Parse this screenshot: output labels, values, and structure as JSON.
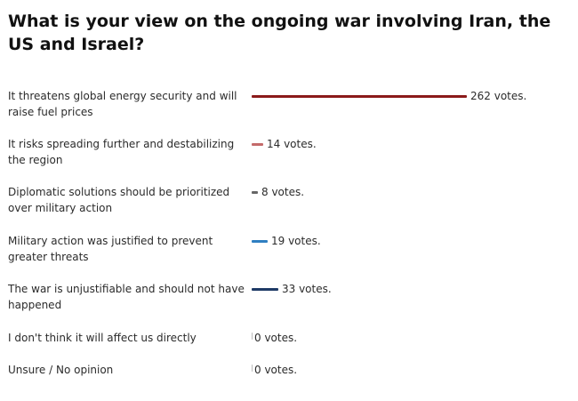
{
  "poll": {
    "question": "What is your view on the ongoing war involving Iran, the US and Israel?",
    "options": [
      {
        "label": "It threatens global energy security and will raise fuel prices",
        "votes": 262,
        "votes_label": "262 votes.",
        "color": "#8b1a1a"
      },
      {
        "label": "It risks spreading further and destabilizing the region",
        "votes": 14,
        "votes_label": "14 votes.",
        "color": "#c46a6a"
      },
      {
        "label": "Diplomatic solutions should be prioritized over military action",
        "votes": 8,
        "votes_label": "8 votes.",
        "color": "#666666"
      },
      {
        "label": "Military action was justified to prevent greater threats",
        "votes": 19,
        "votes_label": "19 votes.",
        "color": "#2f7fc1"
      },
      {
        "label": "The war is unjustifiable and should not have happened",
        "votes": 33,
        "votes_label": "33 votes.",
        "color": "#1e3a66"
      },
      {
        "label": "I don't think it will affect us directly",
        "votes": 0,
        "votes_label": "0 votes.",
        "color": "#bbbbbb"
      },
      {
        "label": "Unsure / No opinion",
        "votes": 0,
        "votes_label": "0 votes.",
        "color": "#bbbbbb"
      }
    ]
  }
}
